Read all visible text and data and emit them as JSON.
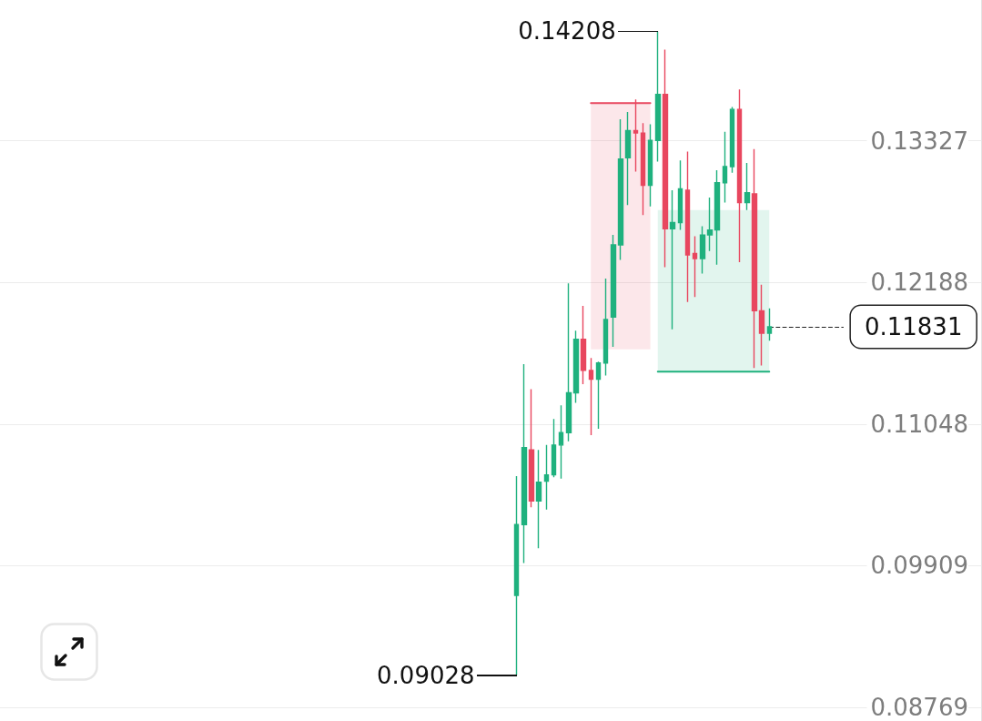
{
  "chart_data": {
    "type": "candlestick",
    "categories": [
      null,
      null,
      null,
      null,
      null,
      null,
      null,
      null,
      null,
      null,
      null,
      null,
      null,
      null,
      null,
      null,
      null,
      null,
      null,
      null,
      null,
      null,
      null,
      null,
      null,
      null,
      null,
      null,
      null,
      null,
      null,
      null,
      null,
      null,
      null,
      null,
      null,
      null,
      null,
      null,
      null,
      null,
      null,
      null,
      null,
      null,
      null,
      null,
      null,
      null,
      null,
      null,
      null,
      null,
      null,
      null,
      null,
      null,
      null,
      null,
      null,
      null,
      null,
      null,
      null,
      null,
      null,
      null,
      null,
      null,
      null,
      null,
      null,
      null,
      null,
      null,
      null,
      null,
      null,
      null,
      null,
      null,
      null,
      null,
      null,
      null,
      null,
      null,
      null,
      null,
      null,
      null,
      null,
      null,
      null,
      null,
      null,
      null,
      null,
      null,
      null,
      null,
      null,
      null,
      null,
      null,
      null,
      null,
      null,
      null,
      null,
      null,
      null,
      null,
      null,
      null,
      null,
      null,
      null,
      null,
      null,
      null,
      null,
      null,
      null,
      null,
      null,
      null,
      null,
      null,
      null,
      null
    ],
    "ohlc": [
      null,
      null,
      null,
      null,
      null,
      null,
      null,
      null,
      null,
      null,
      null,
      null,
      null,
      null,
      null,
      null,
      null,
      null,
      null,
      null,
      null,
      null,
      null,
      null,
      null,
      null,
      null,
      null,
      null,
      null,
      null,
      null,
      null,
      null,
      null,
      null,
      null,
      null,
      null,
      null,
      null,
      null,
      null,
      null,
      null,
      null,
      null,
      null,
      null,
      null,
      null,
      null,
      null,
      null,
      null,
      null,
      null,
      null,
      null,
      null,
      null,
      null,
      null,
      null,
      null,
      null,
      null,
      null,
      null,
      [
        0.0967,
        0.1063,
        0.09028,
        0.1024
      ],
      [
        0.1024,
        0.1153,
        0.0993,
        0.1086
      ],
      [
        0.1084,
        0.1133,
        0.1038,
        0.1043
      ],
      [
        0.1043,
        0.1084,
        0.1005,
        0.1058
      ],
      [
        0.1059,
        0.1088,
        0.1036,
        0.1064
      ],
      [
        0.1064,
        0.1109,
        0.1062,
        0.1088
      ],
      [
        0.1088,
        0.112,
        0.1061,
        0.1098
      ],
      [
        0.1098,
        0.1218,
        0.1091,
        0.113
      ],
      [
        0.113,
        0.118,
        0.1122,
        0.1173
      ],
      [
        0.1173,
        0.12,
        0.1137,
        0.1148
      ],
      [
        0.1148,
        0.1158,
        0.1096,
        0.1141
      ],
      [
        0.1141,
        0.1155,
        0.1101,
        0.1154
      ],
      [
        0.1154,
        0.1222,
        0.1144,
        0.1189
      ],
      [
        0.1191,
        0.1257,
        0.1167,
        0.1249
      ],
      [
        0.1249,
        0.135,
        0.1237,
        0.1318
      ],
      [
        0.1319,
        0.1356,
        0.1281,
        0.1341
      ],
      [
        0.1341,
        0.1366,
        0.1308,
        0.1339
      ],
      [
        0.1339,
        0.1347,
        0.1273,
        0.1297
      ],
      [
        0.1297,
        0.1346,
        0.128,
        0.1333
      ],
      [
        0.1333,
        0.14208,
        0.1316,
        0.137
      ],
      [
        0.137,
        0.1406,
        0.1231,
        0.1262
      ],
      [
        0.1262,
        0.1293,
        0.1181,
        0.1267
      ],
      [
        0.1267,
        0.1317,
        0.1261,
        0.1294
      ],
      [
        0.1293,
        0.1324,
        0.1203,
        0.1241
      ],
      [
        0.1242,
        0.1256,
        0.1207,
        0.1238
      ],
      [
        0.1238,
        0.1264,
        0.1226,
        0.1257
      ],
      [
        0.1257,
        0.1287,
        0.1244,
        0.1261
      ],
      [
        0.1261,
        0.1309,
        0.1233,
        0.1299
      ],
      [
        0.1299,
        0.134,
        0.1283,
        0.1312
      ],
      [
        0.1312,
        0.136,
        0.1307,
        0.1358
      ],
      [
        0.1358,
        0.1374,
        0.1235,
        0.1283
      ],
      [
        0.1283,
        0.1315,
        0.1277,
        0.1291
      ],
      [
        0.129,
        0.1326,
        0.115,
        0.1196
      ],
      [
        0.1196,
        0.1217,
        0.1152,
        0.1178
      ],
      [
        0.1178,
        0.1198,
        0.1172,
        0.11831
      ],
      null,
      null,
      null,
      null,
      null,
      null,
      null,
      null,
      null,
      null,
      null,
      null,
      null,
      null,
      null,
      null,
      null,
      null,
      null,
      null,
      null,
      null,
      null,
      null,
      null,
      null,
      null,
      null
    ],
    "colors": [
      null,
      null,
      null,
      null,
      null,
      null,
      null,
      null,
      null,
      null,
      null,
      null,
      null,
      null,
      null,
      null,
      null,
      null,
      null,
      null,
      null,
      null,
      null,
      null,
      null,
      null,
      null,
      null,
      null,
      null,
      null,
      null,
      null,
      null,
      null,
      null,
      null,
      null,
      null,
      null,
      null,
      null,
      null,
      null,
      null,
      null,
      null,
      null,
      null,
      null,
      null,
      null,
      null,
      null,
      null,
      null,
      null,
      null,
      null,
      null,
      null,
      null,
      null,
      null,
      null,
      null,
      null,
      null,
      null,
      "#1fb17e",
      "#1fb17e",
      "#e8475f",
      "#1fb17e",
      "#1fb17e",
      "#1fb17e",
      "#1fb17e",
      "#1fb17e",
      "#1fb17e",
      "#e8475f",
      "#e8475f",
      "#1fb17e",
      "#1fb17e",
      "#1fb17e",
      "#1fb17e",
      "#1fb17e",
      "#e8475f",
      "#e8475f",
      "#1fb17e",
      "#1fb17e",
      "#e8475f",
      "#1fb17e",
      "#1fb17e",
      "#e8475f",
      "#e8475f",
      "#1fb17e",
      "#1fb17e",
      "#1fb17e",
      "#1fb17e",
      "#1fb17e",
      "#e8475f",
      "#1fb17e",
      "#e8475f",
      "#e8475f",
      "#1fb17e",
      null,
      null,
      null,
      null,
      null,
      null,
      null,
      null,
      null,
      null,
      null,
      null,
      null,
      null,
      null,
      null,
      null,
      null,
      null,
      null,
      null,
      null,
      null,
      null,
      null,
      null,
      null,
      null
    ],
    "series": [
      {
        "type": "line",
        "color": "#e8475f",
        "values": [
          null,
          null,
          null,
          null,
          null,
          null,
          null,
          null,
          null,
          null,
          null,
          null,
          null,
          null,
          null,
          null,
          null,
          null,
          null,
          null,
          null,
          null,
          null,
          null,
          null,
          null,
          null,
          null,
          null,
          null,
          null,
          null,
          null,
          null,
          null,
          null,
          null,
          null,
          null,
          null,
          null,
          null,
          null,
          null,
          null,
          null,
          null,
          null,
          null,
          null,
          null,
          null,
          null,
          null,
          null,
          null,
          null,
          null,
          null,
          null,
          null,
          null,
          null,
          null,
          null,
          null,
          null,
          null,
          null,
          null,
          null,
          null,
          null,
          null,
          null,
          null,
          null,
          null,
          null,
          0.1363,
          0.1363,
          0.1363,
          0.1363,
          0.1363,
          0.1363,
          0.1363,
          0.1363,
          0.1363,
          null,
          null,
          null,
          null,
          null,
          null,
          null,
          null,
          null,
          null,
          null,
          null,
          null,
          null,
          null,
          null,
          null,
          null,
          null,
          null,
          null,
          null,
          null,
          null,
          null,
          null,
          null,
          null,
          null,
          null,
          null,
          null,
          null,
          null,
          null,
          null,
          null,
          null,
          null,
          null,
          null,
          null,
          null,
          null
        ],
        "lower": [
          null,
          null,
          null,
          null,
          null,
          null,
          null,
          null,
          null,
          null,
          null,
          null,
          null,
          null,
          null,
          null,
          null,
          null,
          null,
          null,
          null,
          null,
          null,
          null,
          null,
          null,
          null,
          null,
          null,
          null,
          null,
          null,
          null,
          null,
          null,
          null,
          null,
          null,
          null,
          null,
          null,
          null,
          null,
          null,
          null,
          null,
          null,
          null,
          null,
          null,
          null,
          null,
          null,
          null,
          null,
          null,
          null,
          null,
          null,
          null,
          null,
          null,
          null,
          null,
          null,
          null,
          null,
          null,
          null,
          null,
          null,
          null,
          null,
          null,
          null,
          null,
          null,
          null,
          null,
          0.1165,
          0.1165,
          0.1165,
          0.1165,
          0.1165,
          0.1165,
          0.1165,
          0.1165,
          0.1165,
          null,
          null,
          null,
          null,
          null,
          null,
          null,
          null,
          null,
          null,
          null,
          null,
          null,
          null,
          null,
          null,
          null,
          null,
          null,
          null,
          null,
          null,
          null,
          null,
          null,
          null,
          null,
          null,
          null,
          null,
          null,
          null,
          null,
          null,
          null,
          null,
          null,
          null,
          null,
          null,
          null,
          null,
          null,
          null
        ],
        "upper": [
          null,
          null,
          null,
          null,
          null,
          null,
          null,
          null,
          null,
          null,
          null,
          null,
          null,
          null,
          null,
          null,
          null,
          null,
          null,
          null,
          null,
          null,
          null,
          null,
          null,
          null,
          null,
          null,
          null,
          null,
          null,
          null,
          null,
          null,
          null,
          null,
          null,
          null,
          null,
          null,
          null,
          null,
          null,
          null,
          null,
          null,
          null,
          null,
          null,
          null,
          null,
          null,
          null,
          null,
          null,
          null,
          null,
          null,
          null,
          null,
          null,
          null,
          null,
          null,
          null,
          null,
          null,
          null,
          null,
          null,
          null,
          null,
          null,
          null,
          null,
          null,
          null,
          null,
          null,
          0.1363,
          0.1363,
          0.1363,
          0.1363,
          0.1363,
          0.1363,
          0.1363,
          0.1363,
          0.1363,
          null,
          null,
          null,
          null,
          null,
          null,
          null,
          null,
          null,
          null,
          null,
          null,
          null,
          null,
          null,
          null,
          null,
          null,
          null,
          null,
          null,
          null,
          null,
          null,
          null,
          null,
          null,
          null,
          null,
          null,
          null,
          null,
          null,
          null,
          null,
          null,
          null,
          null,
          null,
          null,
          null,
          null,
          null,
          null
        ]
      },
      {
        "type": "line",
        "color": "#1fb17e",
        "values": [
          null,
          null,
          null,
          null,
          null,
          null,
          null,
          null,
          null,
          null,
          null,
          null,
          null,
          null,
          null,
          null,
          null,
          null,
          null,
          null,
          null,
          null,
          null,
          null,
          null,
          null,
          null,
          null,
          null,
          null,
          null,
          null,
          null,
          null,
          null,
          null,
          null,
          null,
          null,
          null,
          null,
          null,
          null,
          null,
          null,
          null,
          null,
          null,
          null,
          null,
          null,
          null,
          null,
          null,
          null,
          null,
          null,
          null,
          null,
          null,
          null,
          null,
          null,
          null,
          null,
          null,
          null,
          null,
          null,
          null,
          null,
          null,
          null,
          null,
          null,
          null,
          null,
          null,
          null,
          null,
          null,
          null,
          null,
          null,
          null,
          null,
          null,
          null,
          0.1147,
          0.1147,
          0.1147,
          0.1147,
          0.1147,
          0.1147,
          0.1147,
          0.1147,
          0.1147,
          0.1147,
          0.1147,
          0.1147,
          0.1147,
          0.1147,
          0.1147,
          0.1147,
          null,
          null,
          null,
          null,
          null,
          null,
          null,
          null,
          null,
          null,
          null,
          null,
          null,
          null,
          null,
          null,
          null,
          null,
          null,
          null,
          null,
          null,
          null,
          null,
          null,
          null,
          null,
          null
        ],
        "lower": [
          null,
          null,
          null,
          null,
          null,
          null,
          null,
          null,
          null,
          null,
          null,
          null,
          null,
          null,
          null,
          null,
          null,
          null,
          null,
          null,
          null,
          null,
          null,
          null,
          null,
          null,
          null,
          null,
          null,
          null,
          null,
          null,
          null,
          null,
          null,
          null,
          null,
          null,
          null,
          null,
          null,
          null,
          null,
          null,
          null,
          null,
          null,
          null,
          null,
          null,
          null,
          null,
          null,
          null,
          null,
          null,
          null,
          null,
          null,
          null,
          null,
          null,
          null,
          null,
          null,
          null,
          null,
          null,
          null,
          null,
          null,
          null,
          null,
          null,
          null,
          null,
          null,
          null,
          null,
          null,
          null,
          null,
          null,
          null,
          null,
          null,
          null,
          null,
          0.1147,
          0.1147,
          0.1147,
          0.1147,
          0.1147,
          0.1147,
          0.1147,
          0.1147,
          0.1147,
          0.1147,
          0.1147,
          0.1147,
          0.1147,
          0.1147,
          0.1147,
          0.1147,
          null,
          null,
          null,
          null,
          null,
          null,
          null,
          null,
          null,
          null,
          null,
          null,
          null,
          null,
          null,
          null,
          null,
          null,
          null,
          null,
          null,
          null,
          null,
          null,
          null,
          null,
          null,
          null
        ],
        "upper": [
          null,
          null,
          null,
          null,
          null,
          null,
          null,
          null,
          null,
          null,
          null,
          null,
          null,
          null,
          null,
          null,
          null,
          null,
          null,
          null,
          null,
          null,
          null,
          null,
          null,
          null,
          null,
          null,
          null,
          null,
          null,
          null,
          null,
          null,
          null,
          null,
          null,
          null,
          null,
          null,
          null,
          null,
          null,
          null,
          null,
          null,
          null,
          null,
          null,
          null,
          null,
          null,
          null,
          null,
          null,
          null,
          null,
          null,
          null,
          null,
          null,
          null,
          null,
          null,
          null,
          null,
          null,
          null,
          null,
          null,
          null,
          null,
          null,
          null,
          null,
          null,
          null,
          null,
          null,
          null,
          null,
          null,
          null,
          null,
          null,
          null,
          null,
          null,
          0.1277,
          0.1277,
          0.1277,
          0.1277,
          0.1277,
          0.1277,
          0.1277,
          0.1277,
          0.1277,
          0.1277,
          0.1277,
          0.1277,
          0.1277,
          0.1277,
          0.1277,
          0.1277,
          null,
          null,
          null,
          null,
          null,
          null,
          null,
          null,
          null,
          null,
          null,
          null,
          null,
          null,
          null,
          null,
          null,
          null,
          null,
          null,
          null,
          null,
          null,
          null,
          null,
          null,
          null,
          null
        ]
      }
    ],
    "ylim": [
      0.0866,
      0.1446
    ],
    "yticks": [
      0.08769,
      0.09909,
      0.11048,
      0.12188,
      0.13327
    ],
    "tick_labels": "y",
    "grid": "y",
    "ref_lines": [
      {
        "axis": "y",
        "value": 0.11831,
        "label": "0.11831",
        "line_style": "dashed",
        "color": "#222222"
      }
    ],
    "annotations": [
      "0.14208",
      "0.09028"
    ]
  }
}
